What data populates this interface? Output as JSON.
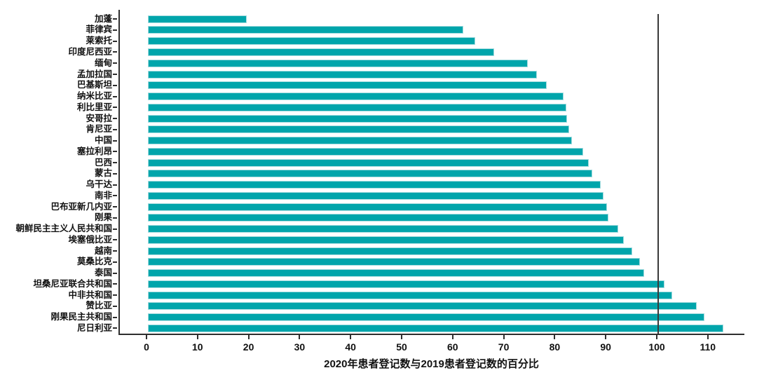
{
  "chart_data": {
    "type": "bar",
    "orientation": "horizontal",
    "title": "",
    "xlabel": "2020年患者登记数与2019患者登记数的百分比",
    "ylabel": "",
    "categories": [
      "加蓬",
      "菲律宾",
      "莱索托",
      "印度尼西亚",
      "缅甸",
      "孟加拉国",
      "巴基斯坦",
      "纳米比亚",
      "利比里亚",
      "安哥拉",
      "肯尼亚",
      "中国",
      "塞拉利昂",
      "巴西",
      "蒙古",
      "乌干达",
      "南非",
      "巴布亚新几内亚",
      "刚果",
      "朝鲜民主主义人民共和国",
      "埃塞俄比亚",
      "越南",
      "莫桑比克",
      "泰国",
      "坦桑尼亚联合共和国",
      "中非共和国",
      "赞比亚",
      "刚果民主共和国",
      "尼日利亚"
    ],
    "values": [
      19.4,
      61.8,
      64.1,
      67.8,
      74.5,
      76.2,
      78.1,
      81.5,
      82.0,
      82.1,
      82.6,
      83.1,
      85.3,
      86.4,
      87.1,
      88.7,
      89.3,
      90.0,
      90.2,
      92.2,
      93.3,
      94.9,
      96.4,
      97.2,
      101.3,
      102.8,
      107.6,
      109.1,
      112.8
    ],
    "x_ticks": [
      0,
      10,
      20,
      30,
      40,
      50,
      60,
      70,
      80,
      90,
      100,
      110
    ],
    "xlim": [
      0,
      117
    ],
    "reference_line_x": 100,
    "grid": false,
    "legend": null,
    "bar_color": "#00a5ab",
    "bar_edge_color": "#a5dcdf",
    "axis_color": "#2e2e2e",
    "reference_line_color": "#3a3a3a",
    "background_color": "#ffffff"
  }
}
